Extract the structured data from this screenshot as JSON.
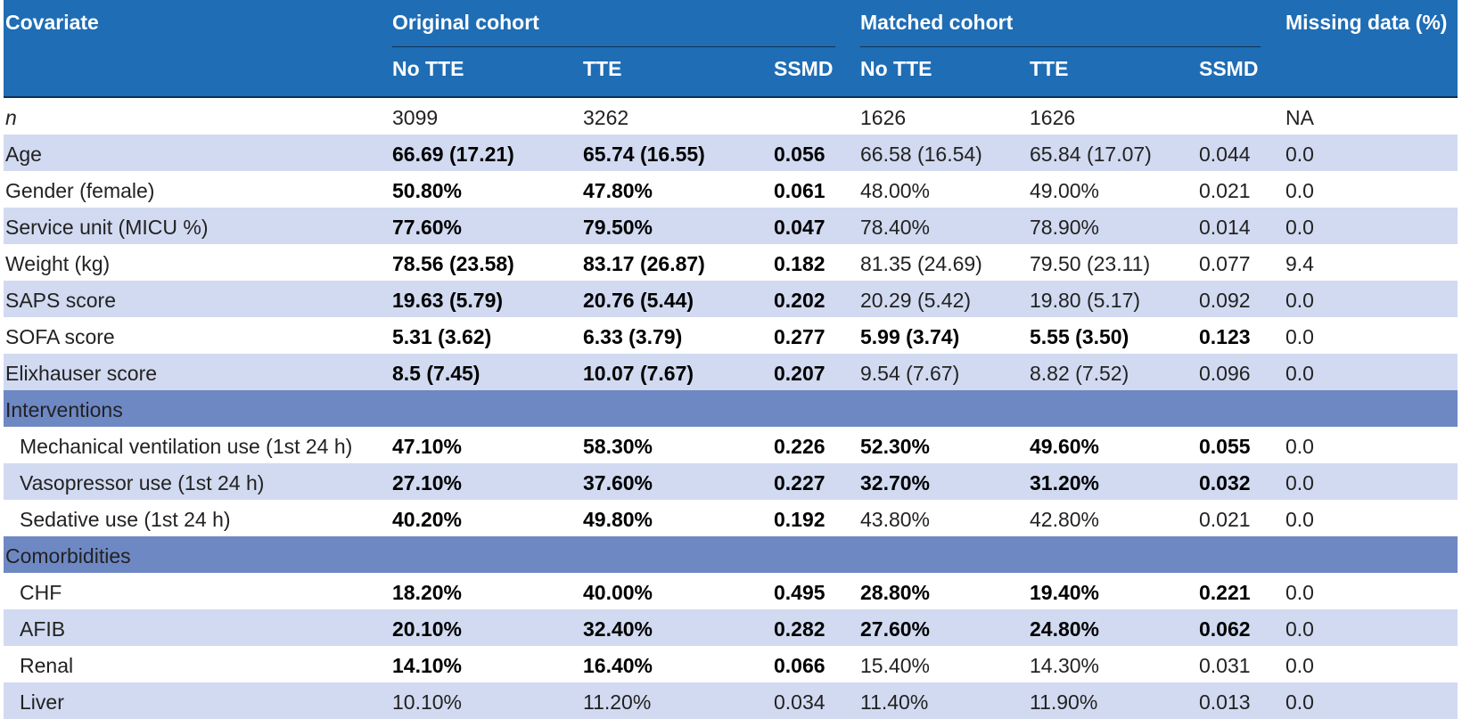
{
  "header": {
    "covariate": "Covariate",
    "groups": [
      "Original cohort",
      "Matched cohort"
    ],
    "missing": "Missing data (%)",
    "subheaders": [
      "No TTE",
      "TTE",
      "SSMD",
      "No TTE",
      "TTE",
      "SSMD"
    ]
  },
  "rows": [
    {
      "label": "n",
      "italic": true,
      "cells": [
        "3099",
        "3262",
        "",
        "1626",
        "1626",
        "",
        "NA"
      ],
      "bold": [
        false,
        false
      ]
    },
    {
      "label": "Age",
      "cells": [
        "66.69 (17.21)",
        "65.74 (16.55)",
        "0.056",
        "66.58 (16.54)",
        "65.84 (17.07)",
        "0.044",
        "0.0"
      ],
      "bold": [
        true,
        false
      ]
    },
    {
      "label": "Gender (female)",
      "cells": [
        "50.80%",
        "47.80%",
        "0.061",
        "48.00%",
        "49.00%",
        "0.021",
        "0.0"
      ],
      "bold": [
        true,
        false
      ]
    },
    {
      "label": "Service unit (MICU %)",
      "cells": [
        "77.60%",
        "79.50%",
        "0.047",
        "78.40%",
        "78.90%",
        "0.014",
        "0.0"
      ],
      "bold": [
        true,
        false
      ]
    },
    {
      "label": "Weight (kg)",
      "cells": [
        "78.56 (23.58)",
        "83.17 (26.87)",
        "0.182",
        "81.35 (24.69)",
        "79.50 (23.11)",
        "0.077",
        "9.4"
      ],
      "bold": [
        true,
        false
      ]
    },
    {
      "label": "SAPS score",
      "cells": [
        "19.63 (5.79)",
        "20.76 (5.44)",
        "0.202",
        "20.29 (5.42)",
        "19.80 (5.17)",
        "0.092",
        "0.0"
      ],
      "bold": [
        true,
        false
      ]
    },
    {
      "label": "SOFA score",
      "cells": [
        "5.31 (3.62)",
        "6.33 (3.79)",
        "0.277",
        "5.99 (3.74)",
        "5.55 (3.50)",
        "0.123",
        "0.0"
      ],
      "bold": [
        true,
        true
      ]
    },
    {
      "label": "Elixhauser score",
      "cells": [
        "8.5 (7.45)",
        "10.07 (7.67)",
        "0.207",
        "9.54 (7.67)",
        "8.82 (7.52)",
        "0.096",
        "0.0"
      ],
      "bold": [
        true,
        false
      ]
    },
    {
      "section": "Interventions"
    },
    {
      "label": "Mechanical ventilation use (1st 24 h)",
      "cells": [
        "47.10%",
        "58.30%",
        "0.226",
        "52.30%",
        "49.60%",
        "0.055",
        "0.0"
      ],
      "bold": [
        true,
        true
      ]
    },
    {
      "label": "Vasopressor use (1st 24 h)",
      "cells": [
        "27.10%",
        "37.60%",
        "0.227",
        "32.70%",
        "31.20%",
        "0.032",
        "0.0"
      ],
      "bold": [
        true,
        true
      ]
    },
    {
      "label": "Sedative use (1st 24 h)",
      "cells": [
        "40.20%",
        "49.80%",
        "0.192",
        "43.80%",
        "42.80%",
        "0.021",
        "0.0"
      ],
      "bold": [
        true,
        false
      ]
    },
    {
      "section": "Comorbidities"
    },
    {
      "label": "CHF",
      "cells": [
        "18.20%",
        "40.00%",
        "0.495",
        "28.80%",
        "19.40%",
        "0.221",
        "0.0"
      ],
      "bold": [
        true,
        true
      ]
    },
    {
      "label": "AFIB",
      "cells": [
        "20.10%",
        "32.40%",
        "0.282",
        "27.60%",
        "24.80%",
        "0.062",
        "0.0"
      ],
      "bold": [
        true,
        true
      ]
    },
    {
      "label": "Renal",
      "cells": [
        "14.10%",
        "16.40%",
        "0.066",
        "15.40%",
        "14.30%",
        "0.031",
        "0.0"
      ],
      "bold": [
        true,
        false
      ]
    },
    {
      "label": "Liver",
      "cells": [
        "10.10%",
        "11.20%",
        "0.034",
        "11.40%",
        "11.90%",
        "0.013",
        "0.0"
      ],
      "bold": [
        false,
        false
      ]
    }
  ]
}
